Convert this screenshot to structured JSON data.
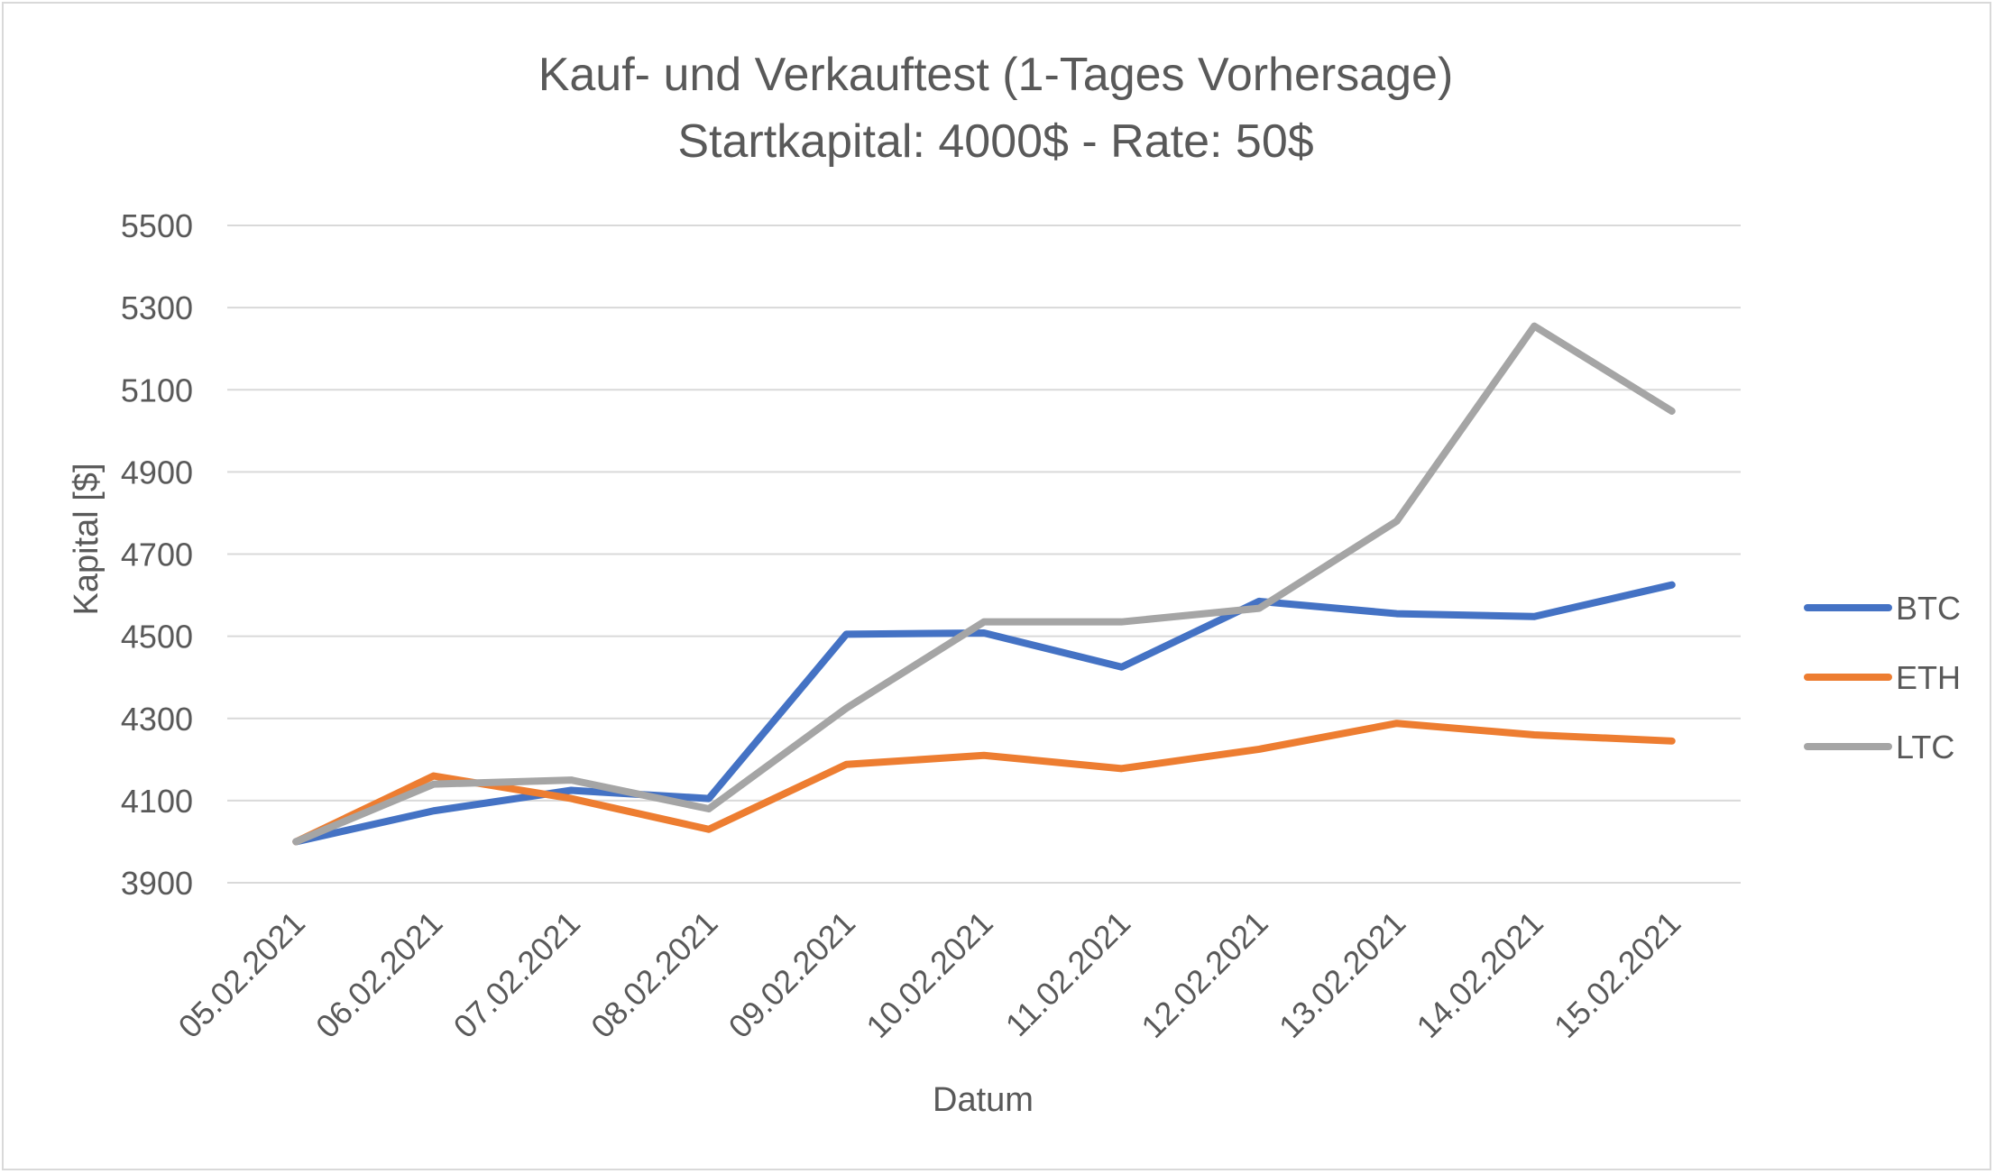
{
  "chart_data": {
    "type": "line",
    "title": "Kauf- und Verkauftest (1-Tages Vorhersage)",
    "subtitle": "Startkapital: 4000$ - Rate: 50$",
    "xlabel": "Datum",
    "ylabel": "Kapital [$]",
    "ylim": [
      3900,
      5500
    ],
    "yticks": [
      3900,
      4100,
      4300,
      4500,
      4700,
      4900,
      5100,
      5300,
      5500
    ],
    "grid": true,
    "legend_position": "right",
    "categories": [
      "05.02.2021",
      "06.02.2021",
      "07.02.2021",
      "08.02.2021",
      "09.02.2021",
      "10.02.2021",
      "11.02.2021",
      "12.02.2021",
      "13.02.2021",
      "14.02.2021",
      "15.02.2021"
    ],
    "series": [
      {
        "name": "BTC",
        "color": "#4472c4",
        "values": [
          4000,
          4075,
          4125,
          4105,
          4505,
          4508,
          4425,
          4585,
          4555,
          4548,
          4625
        ]
      },
      {
        "name": "ETH",
        "color": "#ed7d31",
        "values": [
          4000,
          4160,
          4105,
          4030,
          4188,
          4210,
          4178,
          4225,
          4288,
          4260,
          4245
        ]
      },
      {
        "name": "LTC",
        "color": "#a5a5a5",
        "values": [
          4000,
          4140,
          4150,
          4080,
          4325,
          4535,
          4535,
          4568,
          4780,
          5255,
          5048
        ]
      }
    ]
  }
}
